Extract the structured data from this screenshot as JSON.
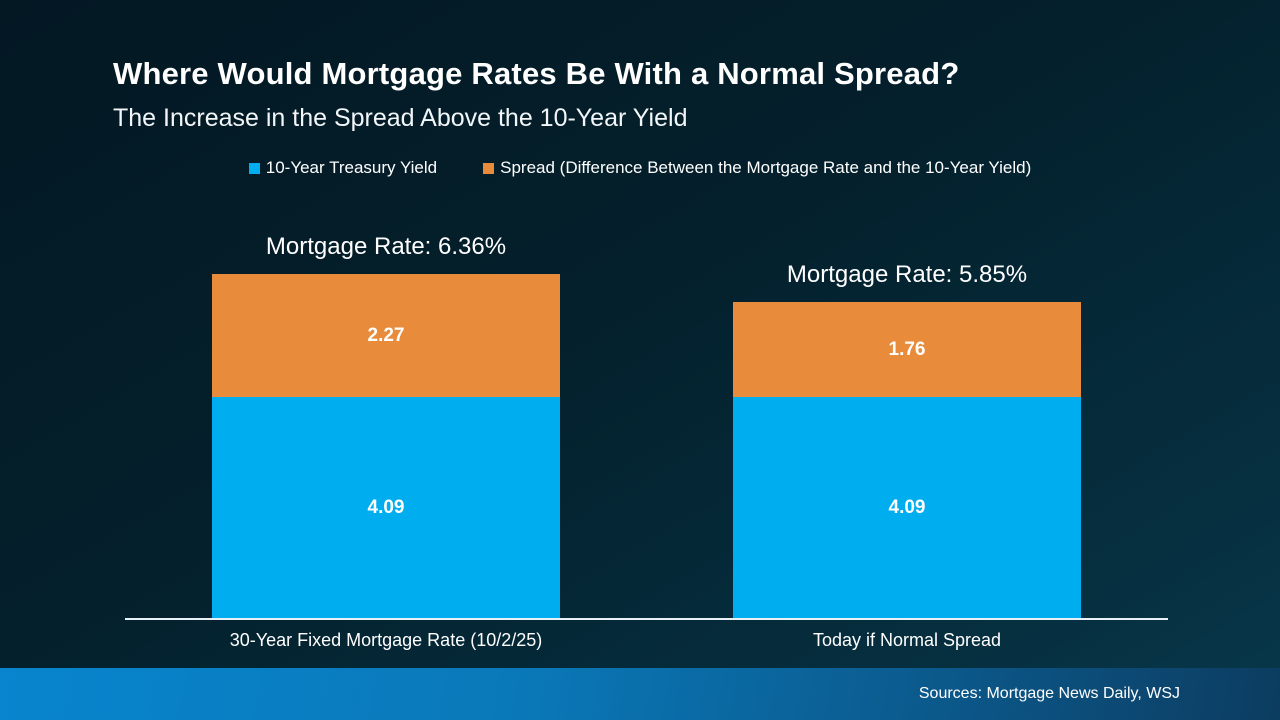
{
  "slide": {
    "title": "Where Would Mortgage Rates Be With a Normal Spread?",
    "subtitle": "The Increase in the Spread Above the 10-Year Yield",
    "footer": {
      "sources": "Sources: Mortgage News Daily, WSJ"
    }
  },
  "legend": {
    "items": [
      {
        "label": "10-Year Treasury Yield",
        "color": "#00AEEF"
      },
      {
        "label": "Spread (Difference Between the Mortgage Rate and the 10-Year Yield)",
        "color": "#E88B3B"
      }
    ]
  },
  "chart_data": {
    "type": "bar",
    "stacked": true,
    "title": "Where Would Mortgage Rates Be With a Normal Spread?",
    "subtitle": "The Increase in the Spread Above the 10-Year Yield",
    "categories": [
      "30-Year Fixed Mortgage Rate (10/2/25)",
      "Today if Normal Spread"
    ],
    "series": [
      {
        "name": "10-Year Treasury Yield",
        "color": "#00AEEF",
        "values": [
          4.09,
          4.09
        ]
      },
      {
        "name": "Spread (Difference Between the Mortgage Rate and the 10-Year Yield)",
        "color": "#E88B3B",
        "values": [
          2.27,
          1.76
        ]
      }
    ],
    "totals": [
      6.36,
      5.85
    ],
    "totals_labels": [
      "Mortgage Rate: 6.36%",
      "Mortgage Rate: 5.85%"
    ],
    "value_labels": {
      "treasury": [
        "4.09",
        "4.09"
      ],
      "spread": [
        "2.27",
        "1.76"
      ]
    },
    "xlabel": "",
    "ylabel": "",
    "ylim": [
      0,
      6.5
    ],
    "grid": false,
    "legend_position": "top",
    "background_color": "#04202C",
    "axis_line_color": "#E9F1F6"
  }
}
